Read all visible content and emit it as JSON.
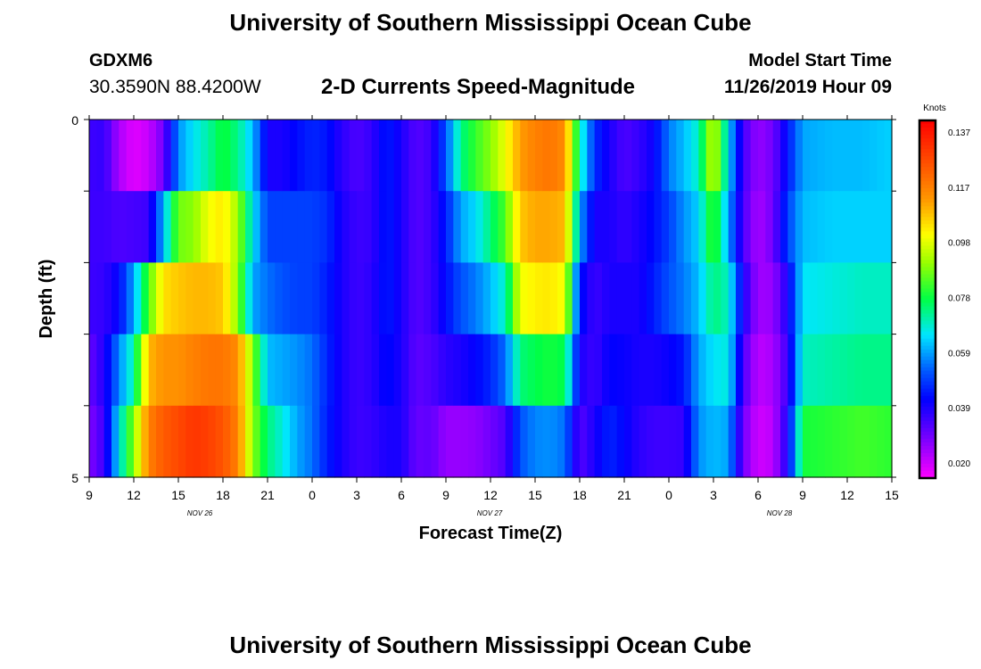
{
  "page": {
    "title": "University of Southern Mississippi Ocean Cube",
    "footer_title": "University of Southern Mississippi Ocean Cube",
    "station_id": "GDXM6",
    "station_coords": "30.3590N 88.4200W",
    "subtitle": "2-D Currents Speed-Magnitude",
    "model_start_label": "Model Start Time",
    "model_start_value": "11/26/2019 Hour 09"
  },
  "chart_data": {
    "type": "heatmap",
    "title": "2-D Currents Speed-Magnitude",
    "xlabel": "Forecast Time(Z)",
    "ylabel": "Depth (ft)",
    "y_tick_labels": [
      "0",
      "5"
    ],
    "ylim": [
      0,
      5
    ],
    "x_tick_labels": [
      "9",
      "12",
      "15",
      "18",
      "21",
      "0",
      "3",
      "6",
      "9",
      "12",
      "15",
      "18",
      "21",
      "0",
      "3",
      "6",
      "9",
      "12",
      "15"
    ],
    "x_date_labels": [
      "NOV  26",
      "NOV  27",
      "NOV  28"
    ],
    "x_date_label_ticks": [
      2,
      8.5,
      15
    ],
    "hours_total": 54,
    "colorbar": {
      "unit": "Knots",
      "tick_labels": [
        "0.137",
        "0.117",
        "0.098",
        "0.078",
        "0.059",
        "0.039",
        "0.020"
      ],
      "range": [
        0.015,
        0.142
      ]
    },
    "z_layers": 5,
    "z_keyframes": [
      {
        "h": 0,
        "v": [
          0.036,
          0.036,
          0.036,
          0.031,
          0.028
        ]
      },
      {
        "h": 1,
        "v": [
          0.037,
          0.036,
          0.037,
          0.039,
          0.036
        ]
      },
      {
        "h": 2,
        "v": [
          0.024,
          0.034,
          0.043,
          0.057,
          0.066
        ]
      },
      {
        "h": 3,
        "v": [
          0.018,
          0.035,
          0.06,
          0.072,
          0.09
        ]
      },
      {
        "h": 4,
        "v": [
          0.021,
          0.036,
          0.085,
          0.11,
          0.118
        ]
      },
      {
        "h": 5,
        "v": [
          0.03,
          0.062,
          0.105,
          0.115,
          0.125
        ]
      },
      {
        "h": 6,
        "v": [
          0.058,
          0.088,
          0.108,
          0.115,
          0.128
        ]
      },
      {
        "h": 7,
        "v": [
          0.066,
          0.09,
          0.11,
          0.118,
          0.132
        ]
      },
      {
        "h": 8,
        "v": [
          0.072,
          0.1,
          0.11,
          0.12,
          0.13
        ]
      },
      {
        "h": 9,
        "v": [
          0.08,
          0.104,
          0.108,
          0.12,
          0.126
        ]
      },
      {
        "h": 10,
        "v": [
          0.074,
          0.092,
          0.09,
          0.116,
          0.118
        ]
      },
      {
        "h": 11,
        "v": [
          0.062,
          0.066,
          0.06,
          0.09,
          0.09
        ]
      },
      {
        "h": 12,
        "v": [
          0.04,
          0.05,
          0.055,
          0.062,
          0.075
        ]
      },
      {
        "h": 13,
        "v": [
          0.04,
          0.05,
          0.052,
          0.06,
          0.068
        ]
      },
      {
        "h": 14,
        "v": [
          0.044,
          0.05,
          0.05,
          0.058,
          0.06
        ]
      },
      {
        "h": 15,
        "v": [
          0.047,
          0.05,
          0.05,
          0.055,
          0.055
        ]
      },
      {
        "h": 16,
        "v": [
          0.045,
          0.048,
          0.046,
          0.047,
          0.046
        ]
      },
      {
        "h": 17,
        "v": [
          0.038,
          0.04,
          0.04,
          0.04,
          0.04
        ]
      },
      {
        "h": 18,
        "v": [
          0.034,
          0.036,
          0.036,
          0.036,
          0.036
        ]
      },
      {
        "h": 19,
        "v": [
          0.037,
          0.037,
          0.038,
          0.038,
          0.037
        ]
      },
      {
        "h": 20,
        "v": [
          0.046,
          0.046,
          0.046,
          0.044,
          0.04
        ]
      },
      {
        "h": 21,
        "v": [
          0.04,
          0.04,
          0.04,
          0.04,
          0.04
        ]
      },
      {
        "h": 22,
        "v": [
          0.033,
          0.033,
          0.033,
          0.032,
          0.031
        ]
      },
      {
        "h": 23,
        "v": [
          0.036,
          0.036,
          0.036,
          0.034,
          0.032
        ]
      },
      {
        "h": 24,
        "v": [
          0.052,
          0.046,
          0.044,
          0.038,
          0.026
        ]
      },
      {
        "h": 25,
        "v": [
          0.074,
          0.06,
          0.052,
          0.04,
          0.026
        ]
      },
      {
        "h": 26,
        "v": [
          0.083,
          0.065,
          0.056,
          0.043,
          0.027
        ]
      },
      {
        "h": 27,
        "v": [
          0.09,
          0.075,
          0.062,
          0.047,
          0.03
        ]
      },
      {
        "h": 28,
        "v": [
          0.1,
          0.085,
          0.07,
          0.055,
          0.034
        ]
      },
      {
        "h": 29,
        "v": [
          0.113,
          0.108,
          0.1,
          0.075,
          0.052
        ]
      },
      {
        "h": 30,
        "v": [
          0.118,
          0.112,
          0.103,
          0.078,
          0.057
        ]
      },
      {
        "h": 31,
        "v": [
          0.12,
          0.112,
          0.104,
          0.08,
          0.058
        ]
      },
      {
        "h": 32,
        "v": [
          0.116,
          0.11,
          0.1,
          0.078,
          0.055
        ]
      },
      {
        "h": 33,
        "v": [
          0.072,
          0.06,
          0.045,
          0.04,
          0.033
        ]
      },
      {
        "h": 34,
        "v": [
          0.048,
          0.04,
          0.036,
          0.036,
          0.04
        ]
      },
      {
        "h": 35,
        "v": [
          0.04,
          0.04,
          0.04,
          0.043,
          0.047
        ]
      },
      {
        "h": 36,
        "v": [
          0.034,
          0.037,
          0.04,
          0.042,
          0.043
        ]
      },
      {
        "h": 37,
        "v": [
          0.037,
          0.04,
          0.04,
          0.04,
          0.038
        ]
      },
      {
        "h": 38,
        "v": [
          0.042,
          0.044,
          0.046,
          0.04,
          0.036
        ]
      },
      {
        "h": 39,
        "v": [
          0.056,
          0.05,
          0.052,
          0.042,
          0.036
        ]
      },
      {
        "h": 40,
        "v": [
          0.062,
          0.058,
          0.056,
          0.045,
          0.037
        ]
      },
      {
        "h": 41,
        "v": [
          0.07,
          0.064,
          0.062,
          0.06,
          0.058
        ]
      },
      {
        "h": 42,
        "v": [
          0.098,
          0.085,
          0.075,
          0.066,
          0.062
        ]
      },
      {
        "h": 43,
        "v": [
          0.065,
          0.06,
          0.07,
          0.068,
          0.06
        ]
      },
      {
        "h": 44,
        "v": [
          0.035,
          0.034,
          0.04,
          0.034,
          0.03
        ]
      },
      {
        "h": 45,
        "v": [
          0.026,
          0.024,
          0.025,
          0.022,
          0.02
        ]
      },
      {
        "h": 46,
        "v": [
          0.03,
          0.03,
          0.026,
          0.024,
          0.022
        ]
      },
      {
        "h": 47,
        "v": [
          0.045,
          0.05,
          0.04,
          0.036,
          0.04
        ]
      },
      {
        "h": 48,
        "v": [
          0.06,
          0.062,
          0.066,
          0.07,
          0.08
        ]
      },
      {
        "h": 50,
        "v": [
          0.062,
          0.064,
          0.068,
          0.072,
          0.082
        ]
      },
      {
        "h": 52,
        "v": [
          0.062,
          0.064,
          0.07,
          0.074,
          0.084
        ]
      },
      {
        "h": 54,
        "v": [
          0.064,
          0.064,
          0.07,
          0.074,
          0.082
        ]
      }
    ]
  }
}
